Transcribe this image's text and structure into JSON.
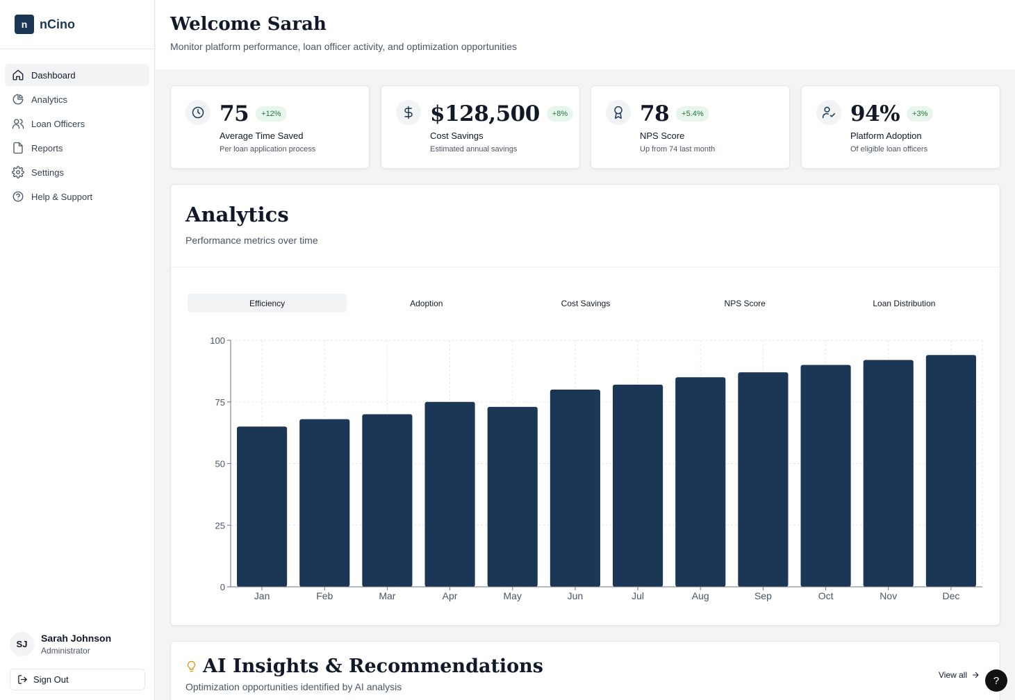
{
  "brand": {
    "mark": "n",
    "name": "nCino"
  },
  "sidebar": {
    "items": [
      {
        "label": "Dashboard",
        "icon": "home-icon",
        "active": true
      },
      {
        "label": "Analytics",
        "icon": "pie-chart-icon"
      },
      {
        "label": "Loan Officers",
        "icon": "users-icon"
      },
      {
        "label": "Reports",
        "icon": "file-icon"
      },
      {
        "label": "Settings",
        "icon": "gear-icon"
      },
      {
        "label": "Help & Support",
        "icon": "help-circle-icon"
      }
    ],
    "user": {
      "initials": "SJ",
      "name": "Sarah Johnson",
      "role": "Administrator"
    },
    "sign_out": "Sign Out"
  },
  "header": {
    "title": "Welcome Sarah",
    "subtitle": "Monitor platform performance, loan officer activity, and optimization opportunities"
  },
  "stats": [
    {
      "icon": "clock-icon",
      "value": "75",
      "badge": "+12%",
      "label": "Average Time Saved",
      "sub": "Per loan application process"
    },
    {
      "icon": "dollar-icon",
      "value": "$128,500",
      "badge": "+8%",
      "label": "Cost Savings",
      "sub": "Estimated annual savings"
    },
    {
      "icon": "award-icon",
      "value": "78",
      "badge": "+5.4%",
      "label": "NPS Score",
      "sub": "Up from 74 last month"
    },
    {
      "icon": "user-check-icon",
      "value": "94%",
      "badge": "+3%",
      "label": "Platform Adoption",
      "sub": "Of eligible loan officers"
    }
  ],
  "analytics": {
    "title": "Analytics",
    "subtitle": "Performance metrics over time",
    "tabs": [
      "Efficiency",
      "Adoption",
      "Cost Savings",
      "NPS Score",
      "Loan Distribution"
    ],
    "active_tab": "Efficiency"
  },
  "chart_data": {
    "type": "bar",
    "categories": [
      "Jan",
      "Feb",
      "Mar",
      "Apr",
      "May",
      "Jun",
      "Jul",
      "Aug",
      "Sep",
      "Oct",
      "Nov",
      "Dec"
    ],
    "values": [
      65,
      68,
      70,
      75,
      73,
      80,
      82,
      85,
      87,
      90,
      92,
      94
    ],
    "ylim": [
      0,
      100
    ],
    "yticks": [
      0,
      25,
      50,
      75,
      100
    ],
    "grid": true,
    "bar_color": "#1c3656",
    "title": "",
    "xlabel": "",
    "ylabel": ""
  },
  "ai_insights": {
    "title": "AI Insights & Recommendations",
    "subtitle": "Optimization opportunities identified by AI analysis",
    "view_all": "View all"
  },
  "help_fab": "?",
  "colors": {
    "brand": "#1c3656",
    "badge_bg": "#e8f5ec",
    "badge_text": "#1f7a3a",
    "accent_bulb": "#e8930c"
  }
}
